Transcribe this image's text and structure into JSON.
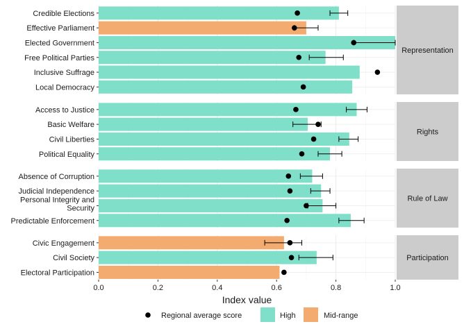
{
  "chart_data": {
    "type": "bar",
    "orientation": "horizontal",
    "xlabel": "Index value",
    "xlim": [
      0,
      1
    ],
    "x_ticks": [
      "0.0",
      "0.2",
      "0.4",
      "0.6",
      "0.8",
      "1.0"
    ],
    "grid": true,
    "legend_position": "bottom",
    "legend": {
      "point_label": "Regional average score",
      "fill_entries": [
        {
          "key": "High",
          "label": "High"
        },
        {
          "key": "Mid-range",
          "label": "Mid-range"
        }
      ]
    },
    "colors": {
      "High": "#7fdfc8",
      "Mid-range": "#f4ab70",
      "panel_strip": "#cccccc",
      "point": "#000000",
      "grid": "#ebebeb"
    },
    "facets": [
      {
        "name": "Representation",
        "items": [
          {
            "label": "Credible Elections",
            "value": 0.81,
            "level": "High",
            "avg": 0.67,
            "err": [
              0.78,
              0.84
            ]
          },
          {
            "label": "Effective Parliament",
            "value": 0.7,
            "level": "Mid-range",
            "avg": 0.66,
            "err": [
              0.66,
              0.74
            ]
          },
          {
            "label": "Elected Government",
            "value": 1.0,
            "level": "High",
            "avg": 0.86,
            "err": [
              0.86,
              1.0
            ]
          },
          {
            "label": "Free Political Parties",
            "value": 0.765,
            "level": "High",
            "avg": 0.675,
            "err": [
              0.71,
              0.825
            ]
          },
          {
            "label": "Inclusive Suffrage",
            "value": 0.88,
            "level": "High",
            "avg": 0.94,
            "err": null
          },
          {
            "label": "Local Democracy",
            "value": 0.855,
            "level": "High",
            "avg": 0.69,
            "err": null
          }
        ]
      },
      {
        "name": "Rights",
        "items": [
          {
            "label": "Access to Justice",
            "value": 0.87,
            "level": "High",
            "avg": 0.665,
            "err": [
              0.835,
              0.905
            ]
          },
          {
            "label": "Basic Welfare",
            "value": 0.705,
            "level": "High",
            "avg": 0.74,
            "err": [
              0.655,
              0.75
            ]
          },
          {
            "label": "Civil Liberties",
            "value": 0.845,
            "level": "High",
            "avg": 0.725,
            "err": [
              0.81,
              0.875
            ]
          },
          {
            "label": "Political Equality",
            "value": 0.78,
            "level": "High",
            "avg": 0.685,
            "err": [
              0.74,
              0.82
            ]
          }
        ]
      },
      {
        "name": "Rule of Law",
        "items": [
          {
            "label": "Absence of Corruption",
            "value": 0.72,
            "level": "High",
            "avg": 0.64,
            "err": [
              0.68,
              0.755
            ]
          },
          {
            "label": "Judicial Independence",
            "value": 0.75,
            "level": "High",
            "avg": 0.645,
            "err": [
              0.715,
              0.78
            ]
          },
          {
            "label": "Personal Integrity and Security",
            "label_lines": [
              "Personal Integrity and",
              "Security"
            ],
            "value": 0.755,
            "level": "High",
            "avg": 0.7,
            "err": [
              0.705,
              0.8
            ]
          },
          {
            "label": "Predictable Enforcement",
            "value": 0.85,
            "level": "High",
            "avg": 0.635,
            "err": [
              0.81,
              0.895
            ]
          }
        ]
      },
      {
        "name": "Participation",
        "items": [
          {
            "label": "Civic Engagement",
            "value": 0.625,
            "level": "Mid-range",
            "avg": 0.645,
            "err": [
              0.56,
              0.685
            ]
          },
          {
            "label": "Civil Society",
            "value": 0.735,
            "level": "High",
            "avg": 0.65,
            "err": [
              0.675,
              0.79
            ]
          },
          {
            "label": "Electoral Participation",
            "value": 0.61,
            "level": "Mid-range",
            "avg": 0.625,
            "err": null
          }
        ]
      }
    ]
  }
}
